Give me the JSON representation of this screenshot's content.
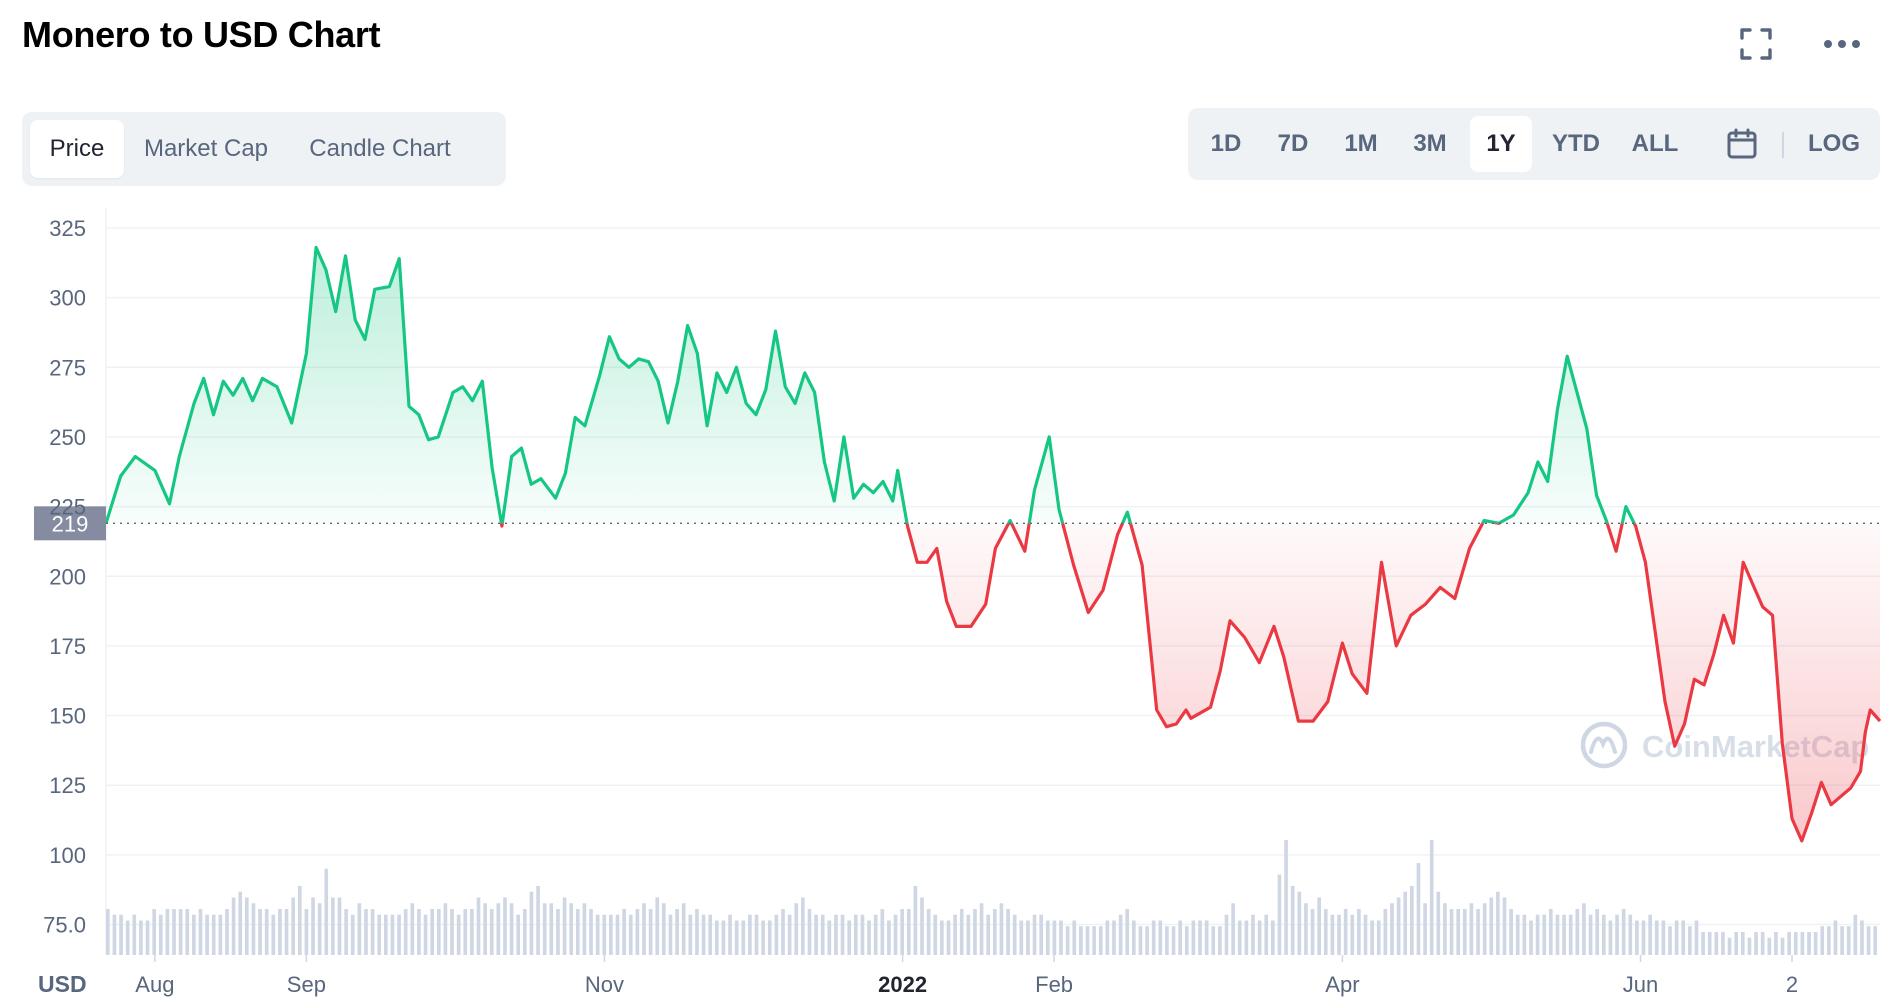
{
  "page": {
    "title": "Monero to USD Chart"
  },
  "header_icons": [
    "fullscreen-icon",
    "more-options-icon"
  ],
  "tabs": [
    {
      "label": "Price",
      "active": true
    },
    {
      "label": "Market Cap",
      "active": false
    },
    {
      "label": "Candle Chart",
      "active": false
    }
  ],
  "ranges": {
    "items": [
      {
        "label": "1D",
        "active": false
      },
      {
        "label": "7D",
        "active": false
      },
      {
        "label": "1M",
        "active": false
      },
      {
        "label": "3M",
        "active": false
      },
      {
        "label": "1Y",
        "active": true
      },
      {
        "label": "YTD",
        "active": false
      },
      {
        "label": "ALL",
        "active": false
      }
    ],
    "calendar_icon": "calendar-icon",
    "log_label": "LOG"
  },
  "colors": {
    "up": "#16c784",
    "down": "#ea3943",
    "baseline_badge": "#858ca2",
    "grid": "#eff2f5",
    "volume": "#cfd6e4"
  },
  "chart_data": {
    "type": "area",
    "title": "",
    "currency_label": "USD",
    "watermark": "CoinMarketCap",
    "baseline": 219,
    "baseline_label": "219",
    "ylim": [
      75,
      325
    ],
    "y_ticks": [
      325,
      300,
      275,
      250,
      225,
      200,
      175,
      150,
      125,
      100,
      75
    ],
    "y_tick_labels": [
      "325",
      "300",
      "275",
      "250",
      "225",
      "200",
      "175",
      "150",
      "125",
      "100",
      "75.0"
    ],
    "x_ticks": [
      {
        "label": "Aug",
        "date": "2021-08-01",
        "bold": false
      },
      {
        "label": "Sep",
        "date": "2021-09-01",
        "bold": false
      },
      {
        "label": "Nov",
        "date": "2021-11-01",
        "bold": false
      },
      {
        "label": "2022",
        "date": "2022-01-01",
        "bold": true
      },
      {
        "label": "Feb",
        "date": "2022-02-01",
        "bold": false
      },
      {
        "label": "Apr",
        "date": "2022-04-01",
        "bold": false
      },
      {
        "label": "Jun",
        "date": "2022-06-01",
        "bold": false
      },
      {
        "label": "2",
        "date": "2022-07-02",
        "bold": false
      }
    ],
    "x_range": [
      "2021-07-22",
      "2022-07-20"
    ],
    "series": [
      {
        "values": [
          [
            "2021-07-22",
            219
          ],
          [
            "2021-07-25",
            236
          ],
          [
            "2021-07-28",
            243
          ],
          [
            "2021-08-01",
            238
          ],
          [
            "2021-08-04",
            226
          ],
          [
            "2021-08-06",
            243
          ],
          [
            "2021-08-09",
            262
          ],
          [
            "2021-08-11",
            271
          ],
          [
            "2021-08-13",
            258
          ],
          [
            "2021-08-15",
            270
          ],
          [
            "2021-08-17",
            265
          ],
          [
            "2021-08-19",
            271
          ],
          [
            "2021-08-21",
            263
          ],
          [
            "2021-08-23",
            271
          ],
          [
            "2021-08-26",
            268
          ],
          [
            "2021-08-29",
            255
          ],
          [
            "2021-09-01",
            280
          ],
          [
            "2021-09-03",
            318
          ],
          [
            "2021-09-05",
            310
          ],
          [
            "2021-09-07",
            295
          ],
          [
            "2021-09-09",
            315
          ],
          [
            "2021-09-11",
            292
          ],
          [
            "2021-09-13",
            285
          ],
          [
            "2021-09-15",
            303
          ],
          [
            "2021-09-18",
            304
          ],
          [
            "2021-09-20",
            314
          ],
          [
            "2021-09-22",
            261
          ],
          [
            "2021-09-24",
            258
          ],
          [
            "2021-09-26",
            249
          ],
          [
            "2021-09-28",
            250
          ],
          [
            "2021-10-01",
            266
          ],
          [
            "2021-10-03",
            268
          ],
          [
            "2021-10-05",
            263
          ],
          [
            "2021-10-07",
            270
          ],
          [
            "2021-10-09",
            239
          ],
          [
            "2021-10-11",
            218
          ],
          [
            "2021-10-13",
            243
          ],
          [
            "2021-10-15",
            246
          ],
          [
            "2021-10-17",
            233
          ],
          [
            "2021-10-19",
            235
          ],
          [
            "2021-10-22",
            228
          ],
          [
            "2021-10-24",
            237
          ],
          [
            "2021-10-26",
            257
          ],
          [
            "2021-10-28",
            254
          ],
          [
            "2021-10-31",
            272
          ],
          [
            "2021-11-02",
            286
          ],
          [
            "2021-11-04",
            278
          ],
          [
            "2021-11-06",
            275
          ],
          [
            "2021-11-08",
            278
          ],
          [
            "2021-11-10",
            277
          ],
          [
            "2021-11-12",
            270
          ],
          [
            "2021-11-14",
            255
          ],
          [
            "2021-11-16",
            270
          ],
          [
            "2021-11-18",
            290
          ],
          [
            "2021-11-20",
            280
          ],
          [
            "2021-11-22",
            254
          ],
          [
            "2021-11-24",
            273
          ],
          [
            "2021-11-26",
            266
          ],
          [
            "2021-11-28",
            275
          ],
          [
            "2021-11-30",
            262
          ],
          [
            "2021-12-02",
            258
          ],
          [
            "2021-12-04",
            267
          ],
          [
            "2021-12-06",
            288
          ],
          [
            "2021-12-08",
            268
          ],
          [
            "2021-12-10",
            262
          ],
          [
            "2021-12-12",
            273
          ],
          [
            "2021-12-14",
            266
          ],
          [
            "2021-12-16",
            241
          ],
          [
            "2021-12-18",
            227
          ],
          [
            "2021-12-20",
            250
          ],
          [
            "2021-12-22",
            228
          ],
          [
            "2021-12-24",
            233
          ],
          [
            "2021-12-26",
            230
          ],
          [
            "2021-12-28",
            234
          ],
          [
            "2021-12-30",
            227
          ],
          [
            "2021-12-31",
            238
          ],
          [
            "2022-01-02",
            218
          ],
          [
            "2022-01-04",
            205
          ],
          [
            "2022-01-06",
            205
          ],
          [
            "2022-01-08",
            210
          ],
          [
            "2022-01-10",
            191
          ],
          [
            "2022-01-12",
            182
          ],
          [
            "2022-01-15",
            182
          ],
          [
            "2022-01-18",
            190
          ],
          [
            "2022-01-20",
            210
          ],
          [
            "2022-01-23",
            220
          ],
          [
            "2022-01-26",
            209
          ],
          [
            "2022-01-28",
            231
          ],
          [
            "2022-01-31",
            250
          ],
          [
            "2022-02-02",
            224
          ],
          [
            "2022-02-05",
            204
          ],
          [
            "2022-02-08",
            187
          ],
          [
            "2022-02-11",
            195
          ],
          [
            "2022-02-14",
            215
          ],
          [
            "2022-02-16",
            223
          ],
          [
            "2022-02-19",
            204
          ],
          [
            "2022-02-22",
            152
          ],
          [
            "2022-02-24",
            146
          ],
          [
            "2022-02-26",
            147
          ],
          [
            "2022-02-28",
            152
          ],
          [
            "2022-03-01",
            149
          ],
          [
            "2022-03-05",
            153
          ],
          [
            "2022-03-07",
            166
          ],
          [
            "2022-03-09",
            184
          ],
          [
            "2022-03-12",
            178
          ],
          [
            "2022-03-15",
            169
          ],
          [
            "2022-03-18",
            182
          ],
          [
            "2022-03-20",
            171
          ],
          [
            "2022-03-23",
            148
          ],
          [
            "2022-03-26",
            148
          ],
          [
            "2022-03-29",
            155
          ],
          [
            "2022-04-01",
            176
          ],
          [
            "2022-04-03",
            165
          ],
          [
            "2022-04-06",
            158
          ],
          [
            "2022-04-09",
            205
          ],
          [
            "2022-04-12",
            175
          ],
          [
            "2022-04-15",
            186
          ],
          [
            "2022-04-18",
            190
          ],
          [
            "2022-04-21",
            196
          ],
          [
            "2022-04-24",
            192
          ],
          [
            "2022-04-27",
            210
          ],
          [
            "2022-04-30",
            220
          ],
          [
            "2022-05-03",
            219
          ],
          [
            "2022-05-06",
            222
          ],
          [
            "2022-05-09",
            230
          ],
          [
            "2022-05-11",
            241
          ],
          [
            "2022-05-13",
            234
          ],
          [
            "2022-05-15",
            260
          ],
          [
            "2022-05-17",
            279
          ],
          [
            "2022-05-19",
            266
          ],
          [
            "2022-05-21",
            253
          ],
          [
            "2022-05-23",
            229
          ],
          [
            "2022-05-25",
            220
          ],
          [
            "2022-05-27",
            209
          ],
          [
            "2022-05-29",
            225
          ],
          [
            "2022-05-31",
            218
          ],
          [
            "2022-06-02",
            205
          ],
          [
            "2022-06-04",
            180
          ],
          [
            "2022-06-06",
            155
          ],
          [
            "2022-06-08",
            139
          ],
          [
            "2022-06-10",
            147
          ],
          [
            "2022-06-12",
            163
          ],
          [
            "2022-06-14",
            161
          ],
          [
            "2022-06-16",
            172
          ],
          [
            "2022-06-18",
            186
          ],
          [
            "2022-06-20",
            176
          ],
          [
            "2022-06-22",
            205
          ],
          [
            "2022-06-24",
            197
          ],
          [
            "2022-06-26",
            189
          ],
          [
            "2022-06-28",
            186
          ],
          [
            "2022-06-30",
            140
          ],
          [
            "2022-07-02",
            113
          ],
          [
            "2022-07-04",
            105
          ],
          [
            "2022-07-06",
            115
          ],
          [
            "2022-07-08",
            126
          ],
          [
            "2022-07-10",
            118
          ],
          [
            "2022-07-12",
            121
          ],
          [
            "2022-07-14",
            124
          ],
          [
            "2022-07-16",
            130
          ],
          [
            "2022-07-17",
            144
          ],
          [
            "2022-07-18",
            152
          ],
          [
            "2022-07-19",
            150
          ],
          [
            "2022-07-20",
            148
          ]
        ]
      }
    ],
    "volume_series_note": "",
    "volume": [
      8,
      7,
      7,
      6,
      7,
      6,
      6,
      8,
      7,
      8,
      8,
      8,
      8,
      7,
      8,
      7,
      7,
      7,
      8,
      10,
      11,
      10,
      9,
      8,
      8,
      7,
      8,
      8,
      10,
      12,
      8,
      10,
      9,
      15,
      10,
      10,
      8,
      7,
      9,
      8,
      8,
      7,
      7,
      7,
      7,
      8,
      9,
      8,
      7,
      8,
      8,
      9,
      8,
      7,
      8,
      8,
      10,
      9,
      8,
      9,
      10,
      9,
      7,
      8,
      11,
      12,
      9,
      9,
      8,
      10,
      9,
      8,
      9,
      8,
      7,
      7,
      7,
      7,
      8,
      7,
      8,
      9,
      8,
      10,
      9,
      7,
      8,
      9,
      7,
      8,
      7,
      7,
      6,
      6,
      7,
      6,
      6,
      7,
      7,
      6,
      6,
      7,
      8,
      7,
      9,
      10,
      8,
      7,
      7,
      6,
      7,
      7,
      6,
      7,
      7,
      6,
      7,
      8,
      6,
      7,
      8,
      8,
      12,
      10,
      8,
      7,
      6,
      6,
      7,
      8,
      7,
      8,
      9,
      7,
      8,
      9,
      8,
      7,
      6,
      6,
      7,
      7,
      6,
      6,
      6,
      5,
      6,
      5,
      5,
      5,
      5,
      6,
      6,
      7,
      8,
      6,
      5,
      5,
      6,
      6,
      5,
      5,
      6,
      5,
      6,
      6,
      6,
      5,
      5,
      7,
      9,
      6,
      6,
      7,
      6,
      7,
      6,
      14,
      20,
      12,
      11,
      9,
      8,
      10,
      8,
      7,
      7,
      8,
      7,
      8,
      7,
      6,
      6,
      8,
      9,
      10,
      11,
      12,
      16,
      9,
      20,
      11,
      9,
      8,
      8,
      8,
      9,
      8,
      9,
      10,
      11,
      10,
      8,
      7,
      7,
      6,
      7,
      7,
      8,
      7,
      7,
      7,
      8,
      9,
      7,
      8,
      7,
      6,
      7,
      8,
      7,
      6,
      6,
      7,
      6,
      6,
      5,
      6,
      6,
      5,
      6,
      4,
      4,
      4,
      4,
      3,
      4,
      4,
      3,
      4,
      4,
      3,
      4,
      3,
      4,
      4,
      4,
      4,
      4,
      5,
      5,
      6,
      5,
      5,
      7,
      6,
      5,
      5
    ]
  }
}
